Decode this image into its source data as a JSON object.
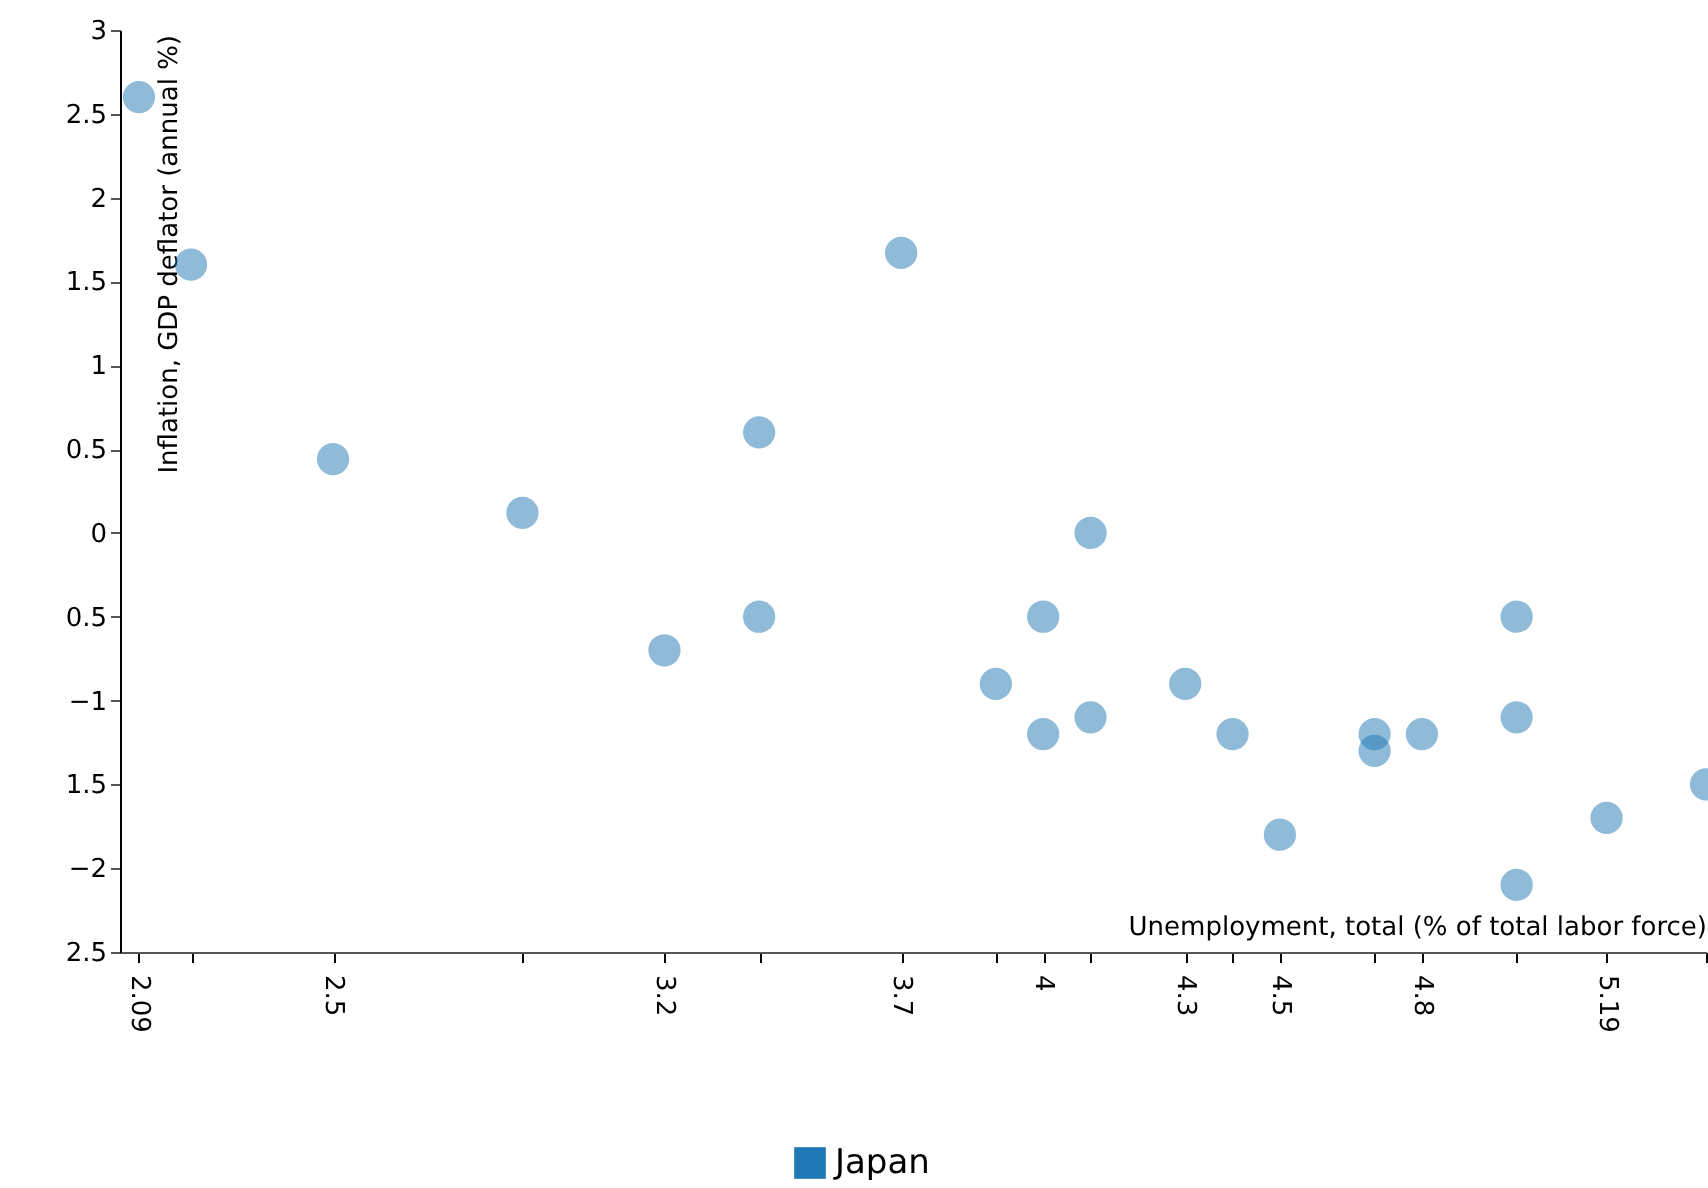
{
  "chart_data": {
    "type": "scatter",
    "xlabel": "Unemployment, total (% of total labor force)",
    "ylabel": "Inflation, GDP deflator (annual %)",
    "x": [
      2.09,
      2.2,
      2.5,
      2.9,
      3.2,
      3.4,
      3.4,
      3.7,
      3.9,
      4.0,
      4.0,
      4.1,
      4.1,
      4.3,
      4.4,
      4.5,
      4.7,
      4.7,
      4.8,
      5.0,
      5.0,
      5.0,
      5.19,
      5.4
    ],
    "series": [
      {
        "name": "Japan",
        "color": "#1f77b4",
        "values": [
          2.6,
          1.6,
          0.44,
          0.12,
          -0.7,
          0.6,
          -0.5,
          1.67,
          -0.9,
          -0.5,
          -1.2,
          0.0,
          -1.1,
          -0.9,
          -1.2,
          -1.8,
          -1.2,
          -1.3,
          -1.2,
          -0.5,
          -1.1,
          -2.1,
          -1.7,
          -1.5
        ]
      }
    ],
    "xlim": [
      2.05,
      5.4
    ],
    "xticks": [
      2.09,
      {
        "value": 2.2,
        "label": null
      },
      2.5,
      {
        "value": 2.9,
        "label": null
      },
      3.2,
      {
        "value": 3.4,
        "label": null
      },
      3.7,
      {
        "value": 3.9,
        "label": null
      },
      4,
      {
        "value": 4.1,
        "label": null
      },
      4.3,
      {
        "value": 4.4,
        "label": null
      },
      4.5,
      {
        "value": 4.7,
        "label": null
      },
      4.8,
      {
        "value": 5.0,
        "label": null
      },
      5.19,
      {
        "value": 5.4,
        "label": null
      }
    ],
    "ylim": [
      -2.5,
      3
    ],
    "yticks": [
      3,
      2.5,
      2,
      1.5,
      1,
      0.5,
      0,
      {
        "value": -0.5,
        "label": "0.5"
      },
      -1,
      {
        "value": -1.5,
        "label": "1.5"
      },
      -2,
      {
        "value": -2.5,
        "label": "2.5"
      }
    ],
    "marker": "circle",
    "grid": false,
    "legend": "bottom"
  }
}
